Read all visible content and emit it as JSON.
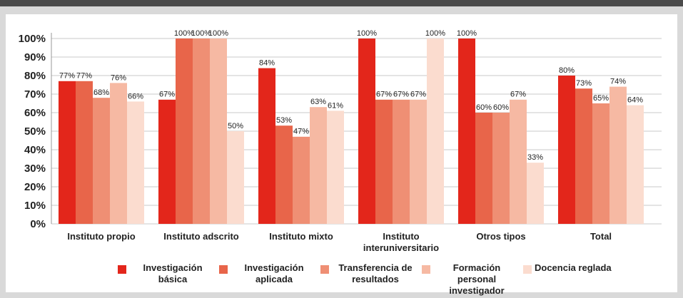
{
  "chart_data": {
    "type": "bar",
    "categories": [
      "Instituto propio",
      "Instituto adscrito",
      "Instituto mixto",
      "Instituto interuniversitario",
      "Otros tipos",
      "Total"
    ],
    "series": [
      {
        "name": "Investigación básica",
        "color": "#e3261b",
        "values": [
          77,
          67,
          84,
          100,
          100,
          80
        ],
        "value_labels": [
          "77%",
          "67%",
          "84%",
          "100%",
          "100%",
          "80%"
        ]
      },
      {
        "name": "Investigación aplicada",
        "color": "#e8654a",
        "values": [
          77,
          100,
          53,
          67,
          60,
          73
        ],
        "value_labels": [
          "77%",
          "100%",
          "53%",
          "67%",
          "60%",
          "73%"
        ]
      },
      {
        "name": "Transferencia de resultados",
        "color": "#ef8f74",
        "values": [
          68,
          100,
          47,
          67,
          60,
          65
        ],
        "value_labels": [
          "68%",
          "100%",
          "47%",
          "67%",
          "60%",
          "65%"
        ]
      },
      {
        "name": "Formación personal investigador",
        "color": "#f6b9a3",
        "values": [
          76,
          100,
          63,
          67,
          67,
          74
        ],
        "value_labels": [
          "76%",
          "100%",
          "63%",
          "67%",
          "67%",
          "74%"
        ]
      },
      {
        "name": "Docencia reglada",
        "color": "#fbdccf",
        "values": [
          66,
          50,
          61,
          100,
          33,
          64
        ],
        "value_labels": [
          "66%",
          "50%",
          "61%",
          "100%",
          "33%",
          "64%"
        ]
      }
    ],
    "ylim": [
      0,
      100
    ],
    "yticks": [
      {
        "value": 0,
        "label": "0%"
      },
      {
        "value": 10,
        "label": "10%"
      },
      {
        "value": 20,
        "label": "20%"
      },
      {
        "value": 30,
        "label": "30%"
      },
      {
        "value": 40,
        "label": "40%"
      },
      {
        "value": 50,
        "label": "50%"
      },
      {
        "value": 60,
        "label": "60%"
      },
      {
        "value": 70,
        "label": "70%"
      },
      {
        "value": 80,
        "label": "80%"
      },
      {
        "value": 90,
        "label": "90%"
      },
      {
        "value": 100,
        "label": "100%"
      }
    ],
    "grid": true
  }
}
